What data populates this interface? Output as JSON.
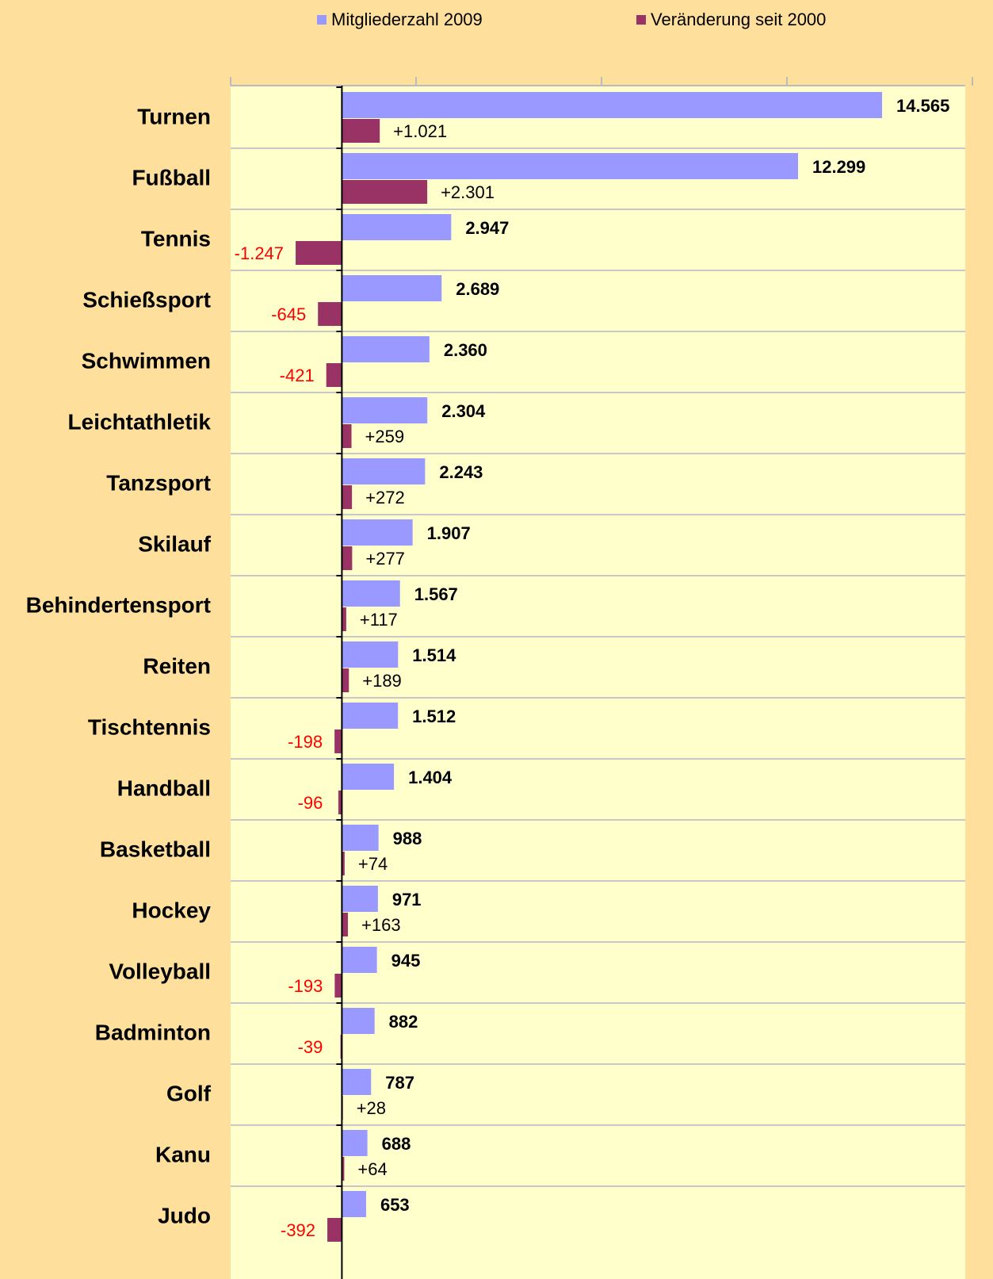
{
  "chart_data": {
    "type": "hbar",
    "categories": [
      "Turnen",
      "Fußball",
      "Tennis",
      "Schießsport",
      "Schwimmen",
      "Leichtathletik",
      "Tanzsport",
      "Skilauf",
      "Behindertensport",
      "Reiten",
      "Tischtennis",
      "Handball",
      "Basketball",
      "Hockey",
      "Volleyball",
      "Badminton",
      "Golf",
      "Kanu",
      "Judo"
    ],
    "series": [
      {
        "name": "Mitgliederzahl 2009",
        "color": "#9999ff",
        "values": [
          14565,
          12299,
          2947,
          2689,
          2360,
          2304,
          2243,
          1907,
          1567,
          1514,
          1512,
          1404,
          988,
          971,
          945,
          882,
          787,
          688,
          653
        ],
        "value_labels": [
          "14.565",
          "12.299",
          "2.947",
          "2.689",
          "2.360",
          "2.304",
          "2.243",
          "1.907",
          "1.567",
          "1.514",
          "1.512",
          "1.404",
          "988",
          "971",
          "945",
          "882",
          "787",
          "688",
          "653"
        ]
      },
      {
        "name": "Veränderung seit 2000",
        "color": "#993366",
        "values": [
          1021,
          2301,
          -1247,
          -645,
          -421,
          259,
          272,
          277,
          117,
          189,
          -198,
          -96,
          74,
          163,
          -193,
          -39,
          28,
          64,
          -392
        ],
        "value_labels": [
          "+1.021",
          "+2.301",
          "-1.247",
          "-645",
          "-421",
          "+259",
          "+272",
          "+277",
          "+117",
          "+189",
          "-198",
          "-96",
          "+74",
          "+163",
          "-193",
          "-39",
          "+28",
          "+64",
          "-392"
        ]
      }
    ],
    "xlim": [
      -3000,
      17000
    ],
    "xticks": [
      -3000,
      2000,
      7000,
      12000,
      17000
    ],
    "grid": true,
    "negative_label_color": "#ff0000"
  }
}
